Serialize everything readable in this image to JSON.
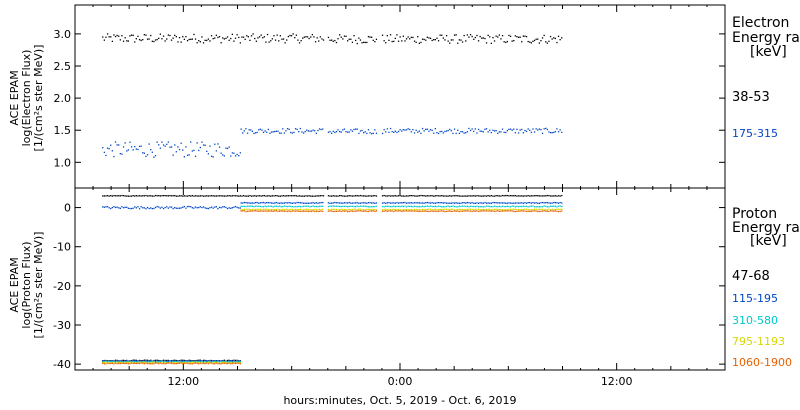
{
  "chart_data": [
    {
      "type": "scatter",
      "ylabel": [
        "ACE EPAM",
        "log(Electron Flux)",
        "[1/(cm²s ster MeV)]"
      ],
      "ylim": [
        0.6,
        3.45
      ],
      "yticks": [
        "1.0",
        "1.5",
        "2.0",
        "2.5",
        "3.0"
      ],
      "ytick_values": [
        1.0,
        1.5,
        2.0,
        2.5,
        3.0
      ],
      "legend": {
        "title": [
          "Electron",
          "Energy ranges",
          "[keV]"
        ],
        "entries": [
          "38-53",
          "175-315"
        ]
      },
      "series": [
        {
          "name": "38-53",
          "color": "#000000",
          "segments": [
            {
              "start": "2019-10-05 07:30",
              "end": "2019-10-05 19:45",
              "mean": 2.93,
              "spread": 0.07
            },
            {
              "start": "2019-10-05 20:00",
              "end": "2019-10-05 22:40",
              "mean": 2.92,
              "spread": 0.07
            },
            {
              "start": "2019-10-05 23:00",
              "end": "2019-10-06 09:00",
              "mean": 2.92,
              "spread": 0.07
            }
          ]
        },
        {
          "name": "175-315",
          "color": "#0047c8",
          "segments": [
            {
              "start": "2019-10-05 07:30",
              "end": "2019-10-05 15:10",
              "mean": 1.2,
              "spread": 0.12
            },
            {
              "start": "2019-10-05 15:10",
              "end": "2019-10-05 19:45",
              "mean": 1.49,
              "spread": 0.04
            },
            {
              "start": "2019-10-05 20:00",
              "end": "2019-10-05 22:40",
              "mean": 1.48,
              "spread": 0.04
            },
            {
              "start": "2019-10-05 23:00",
              "end": "2019-10-06 09:00",
              "mean": 1.49,
              "spread": 0.04
            }
          ]
        }
      ]
    },
    {
      "type": "scatter",
      "ylabel": [
        "ACE EPAM",
        "log(Proton Flux)",
        "[1/(cm²s ster MeV)]"
      ],
      "ylim": [
        -41.5,
        5
      ],
      "yticks": [
        "-40",
        "-30",
        "-20",
        "-10",
        "0"
      ],
      "ytick_values": [
        -40,
        -30,
        -20,
        -10,
        0
      ],
      "legend": {
        "title": [
          "Proton",
          "Energy ranges",
          "[keV]"
        ],
        "entries": [
          "47-68",
          "115-195",
          "310-580",
          "795-1193",
          "1060-1900"
        ]
      },
      "series": [
        {
          "name": "47-68",
          "color": "#000000",
          "segments": [
            {
              "start": "2019-10-05 07:30",
              "end": "2019-10-05 15:10",
              "mean": -39.1,
              "spread": 0.12
            },
            {
              "start": "2019-10-05 07:30",
              "end": "2019-10-05 19:45",
              "mean": 3.0,
              "spread": 0.08
            },
            {
              "start": "2019-10-05 20:00",
              "end": "2019-10-05 22:40",
              "mean": 3.0,
              "spread": 0.08
            },
            {
              "start": "2019-10-05 23:00",
              "end": "2019-10-06 09:00",
              "mean": 3.0,
              "spread": 0.08
            }
          ]
        },
        {
          "name": "115-195",
          "color": "#0047c8",
          "segments": [
            {
              "start": "2019-10-05 07:30",
              "end": "2019-10-05 15:10",
              "mean": -39.2,
              "spread": 0.12
            },
            {
              "start": "2019-10-05 07:30",
              "end": "2019-10-05 15:10",
              "mean": 0.0,
              "spread": 0.3
            },
            {
              "start": "2019-10-05 15:10",
              "end": "2019-10-05 19:45",
              "mean": 1.2,
              "spread": 0.1
            },
            {
              "start": "2019-10-05 20:00",
              "end": "2019-10-05 22:40",
              "mean": 1.2,
              "spread": 0.1
            },
            {
              "start": "2019-10-05 23:00",
              "end": "2019-10-06 09:00",
              "mean": 1.2,
              "spread": 0.1
            }
          ]
        },
        {
          "name": "310-580",
          "color": "#00c8c8",
          "segments": [
            {
              "start": "2019-10-05 07:30",
              "end": "2019-10-05 15:10",
              "mean": -39.4,
              "spread": 0.12
            },
            {
              "start": "2019-10-05 15:10",
              "end": "2019-10-05 19:45",
              "mean": 0.3,
              "spread": 0.1
            },
            {
              "start": "2019-10-05 20:00",
              "end": "2019-10-05 22:40",
              "mean": 0.3,
              "spread": 0.1
            },
            {
              "start": "2019-10-05 23:00",
              "end": "2019-10-06 09:00",
              "mean": 0.3,
              "spread": 0.1
            }
          ]
        },
        {
          "name": "795-1193",
          "color": "#d8d800",
          "segments": [
            {
              "start": "2019-10-05 07:30",
              "end": "2019-10-05 15:10",
              "mean": -39.6,
              "spread": 0.12
            },
            {
              "start": "2019-10-05 15:10",
              "end": "2019-10-05 19:45",
              "mean": -0.5,
              "spread": 0.1
            },
            {
              "start": "2019-10-05 20:00",
              "end": "2019-10-05 22:40",
              "mean": -0.5,
              "spread": 0.1
            },
            {
              "start": "2019-10-05 23:00",
              "end": "2019-10-06 09:00",
              "mean": -0.5,
              "spread": 0.1
            }
          ]
        },
        {
          "name": "1060-1900",
          "color": "#e86000",
          "segments": [
            {
              "start": "2019-10-05 07:30",
              "end": "2019-10-05 15:10",
              "mean": -39.8,
              "spread": 0.12
            },
            {
              "start": "2019-10-05 15:10",
              "end": "2019-10-05 19:45",
              "mean": -0.9,
              "spread": 0.1
            },
            {
              "start": "2019-10-05 20:00",
              "end": "2019-10-05 22:40",
              "mean": -0.9,
              "spread": 0.1
            },
            {
              "start": "2019-10-05 23:00",
              "end": "2019-10-06 09:00",
              "mean": -0.9,
              "spread": 0.1
            }
          ]
        }
      ]
    }
  ],
  "x_axis": {
    "xlim": [
      "2019-10-05 06:00",
      "2019-10-06 18:00"
    ],
    "ticks": [
      "12:00",
      "0:00",
      "12:00"
    ],
    "tick_values": [
      "2019-10-05 12:00",
      "2019-10-06 00:00",
      "2019-10-06 12:00"
    ],
    "xlabel": "hours:minutes, Oct.  5, 2019 - Oct.  6, 2019"
  }
}
